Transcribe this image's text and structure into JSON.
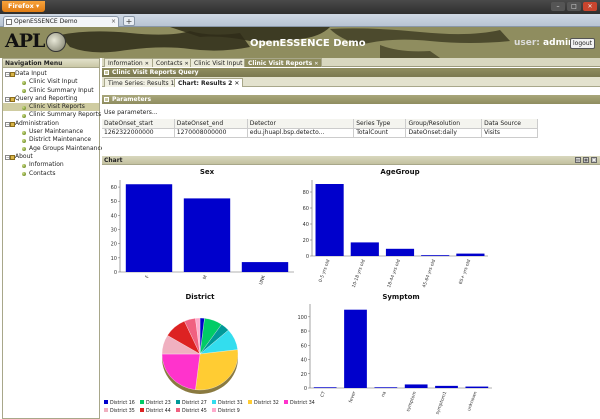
{
  "browser": {
    "menu_label": "Firefox",
    "tab_title": "OpenESSENCE Demo",
    "new_tab_label": "+",
    "window_buttons": [
      "–",
      "□",
      "✕"
    ]
  },
  "header": {
    "logo_text": "APL",
    "app_title": "OpenESSENCE Demo",
    "user_label": "user:",
    "user_name": "admin",
    "logout_label": "logout"
  },
  "nav": {
    "title": "Navigation Menu",
    "groups": [
      {
        "label": "Data Input",
        "items": [
          "Clinic Visit Input",
          "Clinic Summary Input"
        ]
      },
      {
        "label": "Query and Reporting",
        "items": [
          "Clinic Visit Reports",
          "Clinic Summary Reports"
        ]
      },
      {
        "label": "Administration",
        "items": [
          "User Maintenance",
          "District Maintenance",
          "Age Groups Maintenance"
        ]
      },
      {
        "label": "About",
        "items": [
          "Information",
          "Contacts"
        ]
      }
    ],
    "selected": "Clinic Visit Reports"
  },
  "main": {
    "tabs": [
      {
        "label": "Information"
      },
      {
        "label": "Contacts"
      },
      {
        "label": "Clinic Visit Input"
      },
      {
        "label": "Clinic Visit Reports"
      }
    ],
    "query_title": "Clinic Visit Reports Query",
    "sub_tabs": [
      {
        "label": "Time Series: Results 1"
      },
      {
        "label": "Chart: Results 2"
      }
    ],
    "parameters_title": "Parameters",
    "use_params_label": "Use parameters...",
    "params_columns": [
      "DateOnset_start",
      "DateOnset_end",
      "Detector",
      "Series Type",
      "Group/Resolution",
      "Data Source"
    ],
    "params_row": [
      "1262322000000",
      "1270008000000",
      "edu.jhuapl.bsp.detecto...",
      "TotalCount",
      "DateOnset:daily",
      "Visits"
    ],
    "chart_panel_title": "Chart"
  },
  "chart_data": [
    {
      "type": "bar",
      "title": "Sex",
      "categories": [
        "F",
        "M",
        "UNK"
      ],
      "values": [
        62,
        52,
        7
      ],
      "ylim": [
        0,
        65
      ],
      "yticks": [
        0,
        10,
        20,
        30,
        40,
        50,
        60
      ],
      "color": "#0000cc"
    },
    {
      "type": "bar",
      "title": "AgeGroup",
      "categories": [
        "0-5 yrs old",
        "10-18 yrs old",
        "18-44 yrs old",
        "45-64 yrs old",
        "65+ yrs old"
      ],
      "values": [
        90,
        17,
        9,
        1,
        3
      ],
      "ylim": [
        0,
        95
      ],
      "yticks": [
        0,
        20,
        40,
        60,
        80
      ],
      "color": "#0000cc"
    },
    {
      "type": "pie",
      "title": "District",
      "series": [
        {
          "name": "District 16",
          "value": 2,
          "color": "#0000cc"
        },
        {
          "name": "District 23",
          "value": 8,
          "color": "#00cc66"
        },
        {
          "name": "District 27",
          "value": 4,
          "color": "#009999"
        },
        {
          "name": "District 31",
          "value": 10,
          "color": "#33ddee"
        },
        {
          "name": "District 32",
          "value": 30,
          "color": "#ffcc33"
        },
        {
          "name": "District 34",
          "value": 24,
          "color": "#ff33cc"
        },
        {
          "name": "District 35",
          "value": 9,
          "color": "#f0b0c0"
        },
        {
          "name": "District 44",
          "value": 10,
          "color": "#dd2222"
        },
        {
          "name": "District 45",
          "value": 5,
          "color": "#f06080"
        },
        {
          "name": "District 9",
          "value": 2,
          "color": "#ffaacc"
        }
      ]
    },
    {
      "type": "bar",
      "title": "Symptom",
      "categories": [
        "CT",
        "fever",
        "na",
        "symptom",
        "symptom1",
        "unknown"
      ],
      "values": [
        1,
        110,
        1,
        5,
        3,
        2
      ],
      "ylim": [
        0,
        118
      ],
      "yticks": [
        0,
        20,
        40,
        60,
        80,
        100
      ],
      "color": "#0000cc"
    }
  ]
}
